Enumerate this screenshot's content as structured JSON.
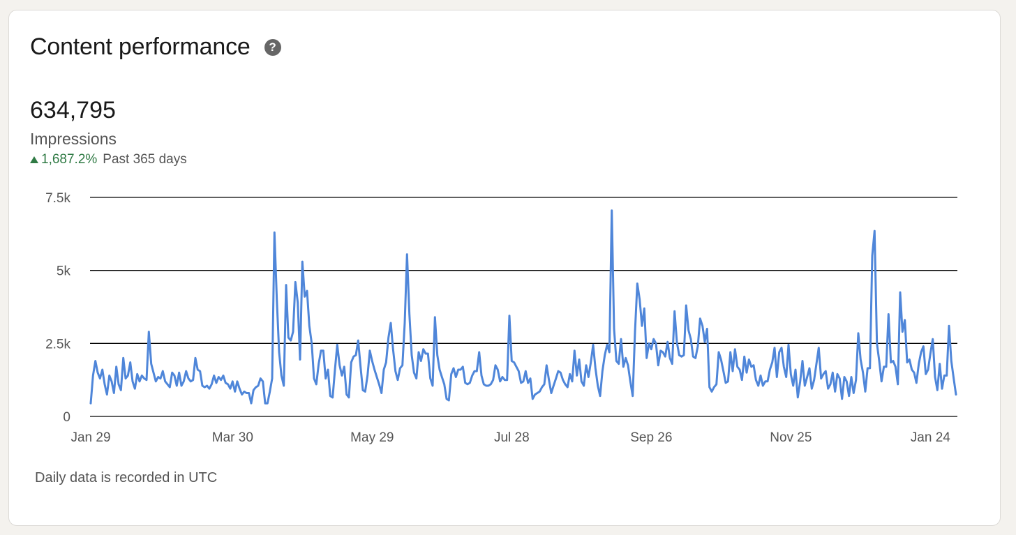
{
  "card": {
    "title": "Content performance",
    "help_icon": "question-circle-icon",
    "help_glyph": "?"
  },
  "metric": {
    "value": "634,795",
    "label": "Impressions",
    "change": "1,687.2%",
    "change_icon": "up-triangle-icon",
    "period": "Past 365 days"
  },
  "footnote": "Daily data is recorded in UTC",
  "colors": {
    "line": "#4f86d9",
    "positive": "#2f7a44",
    "grid": "#000000"
  },
  "chart_data": {
    "type": "line",
    "title": "",
    "xlabel": "",
    "ylabel": "",
    "ylim": [
      0,
      7500
    ],
    "y_ticks": [
      {
        "value": 0,
        "label": "0"
      },
      {
        "value": 2500,
        "label": "2.5k"
      },
      {
        "value": 5000,
        "label": "5k"
      },
      {
        "value": 7500,
        "label": "7.5k"
      }
    ],
    "x_ticks": [
      {
        "day": 0,
        "label": "Jan 29"
      },
      {
        "day": 61,
        "label": "Mar 30"
      },
      {
        "day": 121,
        "label": "May 29"
      },
      {
        "day": 181,
        "label": "Jul 28"
      },
      {
        "day": 241,
        "label": "Sep 26"
      },
      {
        "day": 301,
        "label": "Nov 25"
      },
      {
        "day": 361,
        "label": "Jan 24"
      }
    ],
    "grid": true,
    "legend": "none",
    "series": [
      {
        "name": "Impressions",
        "x_start_day": 0,
        "values": [
          450,
          1400,
          1900,
          1500,
          1300,
          1600,
          1100,
          750,
          1400,
          1200,
          800,
          1700,
          1100,
          900,
          2000,
          1300,
          1400,
          1850,
          1200,
          950,
          1450,
          1200,
          1400,
          1300,
          1250,
          2900,
          1800,
          1500,
          1200,
          1350,
          1300,
          1550,
          1200,
          1100,
          1000,
          1500,
          1400,
          1050,
          1500,
          1050,
          1200,
          1550,
          1300,
          1200,
          1250,
          2000,
          1600,
          1550,
          1050,
          1000,
          1050,
          950,
          1100,
          1400,
          1150,
          1350,
          1250,
          1400,
          1150,
          1100,
          950,
          1200,
          850,
          1200,
          950,
          750,
          850,
          800,
          800,
          450,
          900,
          1000,
          1050,
          1300,
          1200,
          450,
          450,
          850,
          1300,
          6300,
          4000,
          2200,
          1400,
          1050,
          4500,
          2700,
          2600,
          2900,
          4600,
          3900,
          1950,
          5300,
          4100,
          4300,
          3100,
          2500,
          1300,
          1100,
          1800,
          2250,
          2250,
          1300,
          1600,
          700,
          650,
          1600,
          2450,
          1750,
          1400,
          1700,
          750,
          650,
          1850,
          2050,
          2100,
          2600,
          1700,
          900,
          850,
          1400,
          2250,
          1900,
          1600,
          1350,
          1100,
          800,
          1600,
          1850,
          2700,
          3200,
          2300,
          1550,
          1250,
          1650,
          1750,
          3200,
          5550,
          3500,
          2100,
          1500,
          1300,
          2200,
          1900,
          2300,
          2150,
          2150,
          1300,
          1050,
          3400,
          2100,
          1600,
          1350,
          1100,
          600,
          550,
          1450,
          1650,
          1350,
          1600,
          1600,
          1700,
          1150,
          1100,
          1150,
          1400,
          1550,
          1550,
          2200,
          1400,
          1100,
          1050,
          1050,
          1100,
          1250,
          1750,
          1600,
          1200,
          1350,
          1250,
          1250,
          3450,
          1900,
          1850,
          1700,
          1550,
          1150,
          1200,
          1550,
          1150,
          1300,
          600,
          750,
          800,
          850,
          1000,
          1100,
          1750,
          1250,
          800,
          1050,
          1300,
          1550,
          1500,
          1250,
          1100,
          1000,
          1450,
          1200,
          2250,
          1400,
          1950,
          1200,
          1050,
          1750,
          1350,
          1850,
          2450,
          1650,
          1050,
          700,
          1550,
          2100,
          2450,
          2200,
          7050,
          3000,
          1900,
          1800,
          2650,
          1700,
          2000,
          1750,
          1200,
          700,
          2900,
          4550,
          4000,
          3100,
          3700,
          2000,
          2500,
          2300,
          2650,
          2500,
          1750,
          2250,
          2200,
          2050,
          2550,
          2000,
          1800,
          3600,
          2550,
          2100,
          2050,
          2100,
          3800,
          2950,
          2650,
          2050,
          2000,
          2400,
          3350,
          3100,
          2550,
          3000,
          1000,
          850,
          1000,
          1100,
          2200,
          1950,
          1550,
          1150,
          1200,
          2200,
          1550,
          2300,
          1700,
          1600,
          1250,
          2050,
          1500,
          1950,
          1700,
          1750,
          1250,
          1050,
          1400,
          1050,
          1200,
          1200,
          1600,
          1850,
          2350,
          1350,
          2200,
          2350,
          1700,
          1350,
          2450,
          1450,
          1050,
          1600,
          650,
          1200,
          1900,
          1050,
          1350,
          1650,
          950,
          1250,
          1800,
          2350,
          1300,
          1450,
          1550,
          950,
          1100,
          1500,
          850,
          1450,
          1300,
          600,
          1350,
          1200,
          700,
          1350,
          800,
          1250,
          2850,
          1950,
          1500,
          850,
          1650,
          1650,
          5500,
          6350,
          2500,
          1900,
          1200,
          1700,
          1700,
          3500,
          1850,
          1900,
          1700,
          1100,
          4250,
          2900,
          3300,
          1850,
          1950,
          1600,
          1500,
          1150,
          1800,
          2200,
          2400,
          1450,
          1600,
          2150,
          2650,
          1350,
          900,
          1800,
          950,
          1400,
          1400,
          3100,
          1900,
          1300,
          750
        ]
      }
    ]
  }
}
